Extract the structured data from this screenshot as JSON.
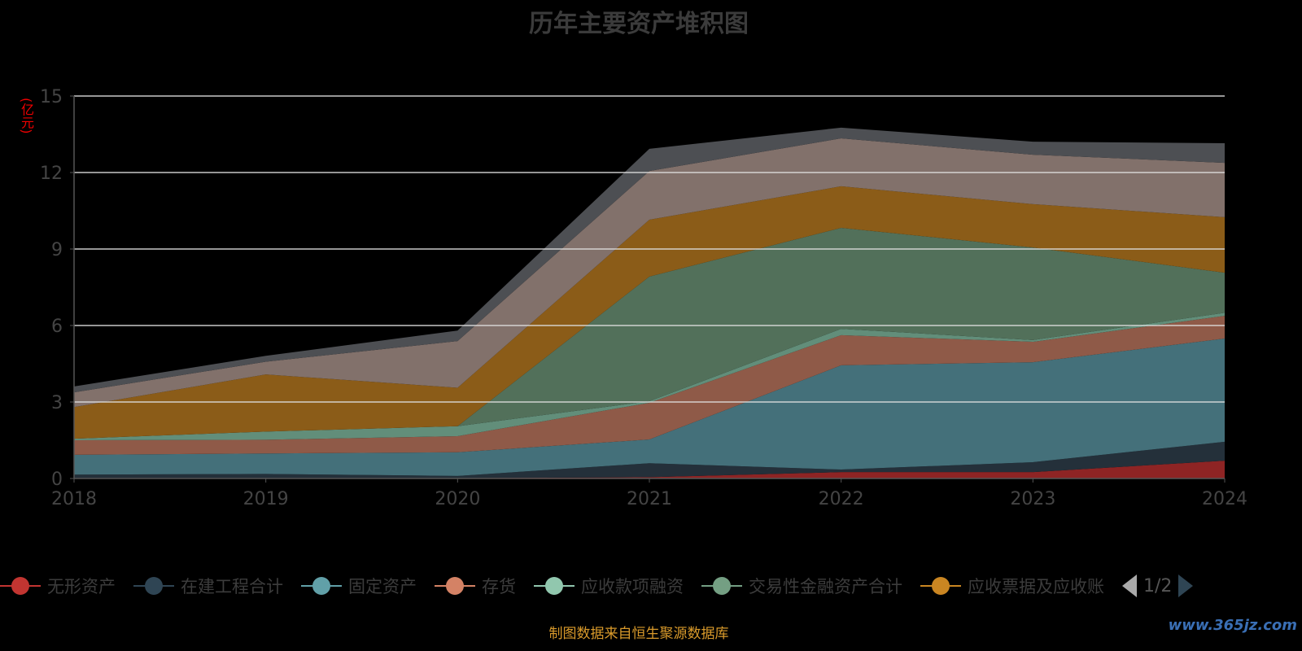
{
  "chart_data": {
    "type": "area",
    "stacked": true,
    "title": "历年主要资产堆积图",
    "ylabel": "(亿元)",
    "xlabel": "",
    "ylim": [
      0,
      15
    ],
    "yticks": [
      "0",
      "3",
      "6",
      "9",
      "12",
      "15"
    ],
    "categories": [
      "2018",
      "2019",
      "2020",
      "2021",
      "2022",
      "2023",
      "2024"
    ],
    "grid": true,
    "legend_position": "bottom",
    "series": [
      {
        "name": "无形资产",
        "color": "#c23531",
        "fill": "#8e2424",
        "values": [
          0.02,
          0.02,
          0.02,
          0.05,
          0.25,
          0.25,
          0.7
        ]
      },
      {
        "name": "在建工程合计",
        "color": "#2f4554",
        "fill": "#24303a",
        "values": [
          0.13,
          0.16,
          0.08,
          0.55,
          0.1,
          0.39,
          0.74
        ]
      },
      {
        "name": "固定资产",
        "color": "#61a0a8",
        "fill": "#44707a",
        "values": [
          0.78,
          0.8,
          0.93,
          0.93,
          4.09,
          3.92,
          4.05
        ]
      },
      {
        "name": "存货",
        "color": "#d48265",
        "fill": "#8f5a48",
        "values": [
          0.57,
          0.54,
          0.63,
          1.44,
          1.18,
          0.8,
          0.89
        ]
      },
      {
        "name": "应收款项融资",
        "color": "#91c7ae",
        "fill": "#628e7a",
        "values": [
          0.06,
          0.32,
          0.39,
          0.06,
          0.25,
          0.07,
          0.12
        ]
      },
      {
        "name": "交易性金融资产合计",
        "color": "#749f83",
        "fill": "#52705a",
        "values": [
          0,
          0,
          0,
          4.89,
          3.96,
          3.63,
          1.57
        ]
      },
      {
        "name": "应收票据及应收账",
        "color": "#ca8622",
        "fill": "#8b5c18",
        "values": [
          1.24,
          2.24,
          1.51,
          2.23,
          1.63,
          1.7,
          2.18
        ]
      },
      {
        "name": "",
        "color": "#bda29a",
        "fill": "#82716b",
        "values": [
          0.58,
          0.5,
          1.83,
          1.91,
          1.88,
          1.94,
          2.13
        ]
      },
      {
        "name": "",
        "color": "#6e7074",
        "fill": "#4d4f53",
        "values": [
          0.23,
          0.23,
          0.41,
          0.87,
          0.42,
          0.51,
          0.77
        ]
      }
    ]
  },
  "legend": {
    "page": "1/2"
  },
  "footer": {
    "source": "制图数据来自恒生聚源数据库",
    "watermark": "www.365jz.com"
  }
}
